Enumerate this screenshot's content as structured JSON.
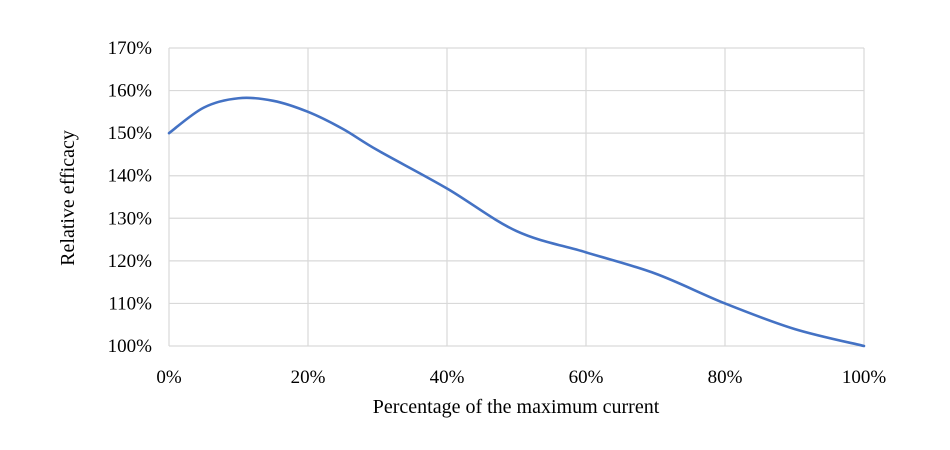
{
  "chart_data": {
    "type": "line",
    "xlabel": "Percentage of the maximum current",
    "ylabel": "Relative efficacy",
    "x_ticks": [
      "0%",
      "20%",
      "40%",
      "60%",
      "80%",
      "100%"
    ],
    "y_ticks": [
      "100%",
      "110%",
      "120%",
      "130%",
      "140%",
      "150%",
      "160%",
      "170%"
    ],
    "xlim": [
      0,
      100
    ],
    "ylim": [
      100,
      170
    ],
    "grid": true,
    "legend": "none",
    "series": [
      {
        "color": "#4472c4",
        "x": [
          0,
          5,
          10,
          15,
          20,
          25,
          30,
          40,
          50,
          60,
          70,
          80,
          90,
          100
        ],
        "y": [
          150,
          156,
          158.2,
          157.6,
          155,
          151,
          146,
          137,
          127,
          122,
          117,
          110,
          104,
          100
        ]
      }
    ]
  }
}
